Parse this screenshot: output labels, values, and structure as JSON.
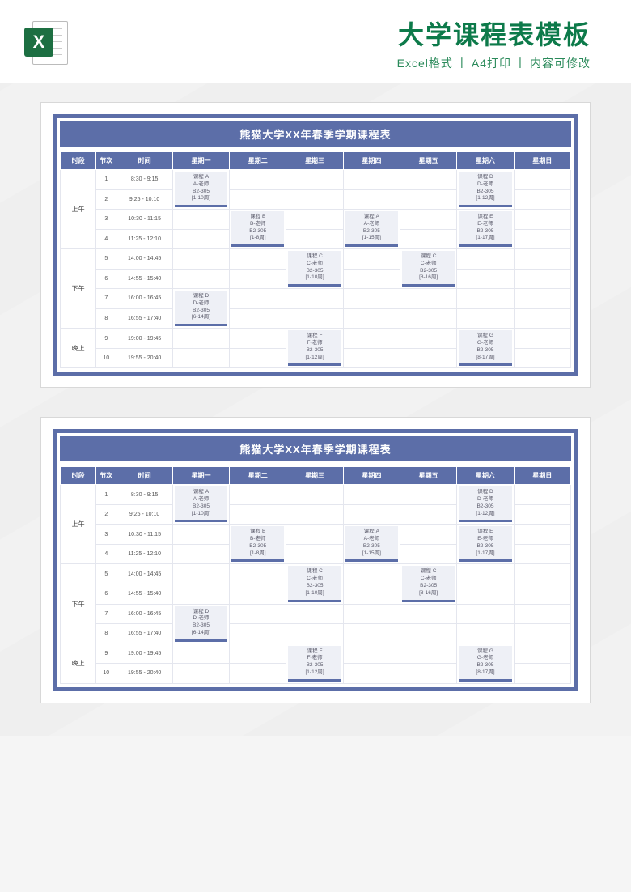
{
  "header": {
    "title": "大学课程表模板",
    "subtitle_parts": [
      "Excel格式",
      "A4打印",
      "内容可修改"
    ],
    "excel_letter": "X"
  },
  "sheet": {
    "title": "熊猫大学XX年春季学期课程表",
    "columns": [
      "时段",
      "节次",
      "时间",
      "星期一",
      "星期二",
      "星期三",
      "星期四",
      "星期五",
      "星期六",
      "星期日"
    ],
    "sections": [
      {
        "label": "上午",
        "rows": [
          {
            "num": "1",
            "time": "8:30 - 9:15"
          },
          {
            "num": "2",
            "time": "9:25 - 10:10"
          },
          {
            "num": "3",
            "time": "10:30 - 11:15"
          },
          {
            "num": "4",
            "time": "11:25 - 12:10"
          }
        ]
      },
      {
        "label": "下午",
        "rows": [
          {
            "num": "5",
            "time": "14:00 - 14:45"
          },
          {
            "num": "6",
            "time": "14:55 - 15:40"
          },
          {
            "num": "7",
            "time": "16:00 - 16:45"
          },
          {
            "num": "8",
            "time": "16:55 - 17:40"
          }
        ]
      },
      {
        "label": "晚上",
        "rows": [
          {
            "num": "9",
            "time": "19:00 - 19:45"
          },
          {
            "num": "10",
            "time": "19:55 - 20:40"
          }
        ]
      }
    ],
    "courses": [
      {
        "day": 0,
        "startRow": 0,
        "span": 2,
        "lines": [
          "课程 A",
          "A-老师",
          "B2-305",
          "[1-10周]"
        ]
      },
      {
        "day": 5,
        "startRow": 0,
        "span": 2,
        "lines": [
          "课程 D",
          "D-老师",
          "B2-305",
          "[1-12周]"
        ]
      },
      {
        "day": 1,
        "startRow": 2,
        "span": 2,
        "lines": [
          "课程 B",
          "B-老师",
          "B2-305",
          "[1-8周]"
        ]
      },
      {
        "day": 3,
        "startRow": 2,
        "span": 2,
        "lines": [
          "课程 A",
          "A-老师",
          "B2-305",
          "[1-15周]"
        ]
      },
      {
        "day": 5,
        "startRow": 2,
        "span": 2,
        "lines": [
          "课程 E",
          "E-老师",
          "B2-305",
          "[1-17周]"
        ]
      },
      {
        "day": 2,
        "startRow": 4,
        "span": 2,
        "lines": [
          "课程 C",
          "C-老师",
          "B2-305",
          "[1-10周]"
        ]
      },
      {
        "day": 4,
        "startRow": 4,
        "span": 2,
        "lines": [
          "课程 C",
          "C-老师",
          "B2-305",
          "[8-16周]"
        ]
      },
      {
        "day": 0,
        "startRow": 6,
        "span": 2,
        "lines": [
          "课程 D",
          "D-老师",
          "B2-305",
          "[6-14周]"
        ]
      },
      {
        "day": 2,
        "startRow": 8,
        "span": 2,
        "lines": [
          "课程 F",
          "F-老师",
          "B2-305",
          "[1-12周]"
        ]
      },
      {
        "day": 5,
        "startRow": 8,
        "span": 2,
        "lines": [
          "课程 G",
          "G-老师",
          "B2-305",
          "[8-17周]"
        ]
      }
    ]
  },
  "colors": {
    "accent": "#5c6ea8",
    "excel_green": "#1d6f42",
    "title_green": "#0d7a4a",
    "block_bg": "#eef0f6",
    "grid": "#e4e6ee"
  }
}
